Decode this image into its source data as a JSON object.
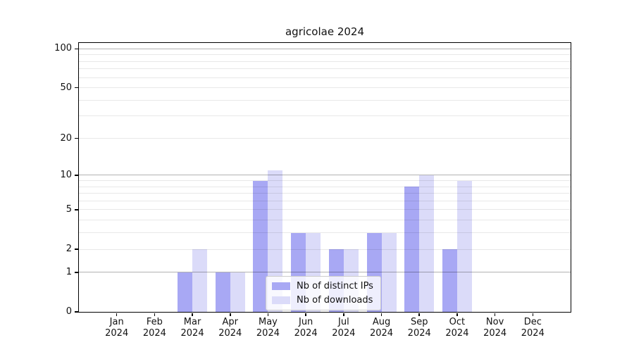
{
  "chart_data": {
    "type": "bar",
    "title": "agricolae 2024",
    "categories": [
      "Jan 2024",
      "Feb 2024",
      "Mar 2024",
      "Apr 2024",
      "May 2024",
      "Jun 2024",
      "Jul 2024",
      "Aug 2024",
      "Sep 2024",
      "Oct 2024",
      "Nov 2024",
      "Dec 2024"
    ],
    "series": [
      {
        "name": "Nb of distinct IPs",
        "color": "#a8a8f4",
        "values": [
          0,
          0,
          1,
          1,
          9,
          3,
          2,
          3,
          8,
          2,
          0,
          0
        ]
      },
      {
        "name": "Nb of downloads",
        "color": "#dbdbf9",
        "values": [
          0,
          0,
          2,
          1,
          11,
          3,
          2,
          3,
          10,
          9,
          0,
          0
        ]
      }
    ],
    "xlabel": "",
    "ylabel": "",
    "y_axis": {
      "scale": "log1p",
      "ymin": 0,
      "ymax": 111,
      "tick_values": [
        0,
        1,
        2,
        5,
        10,
        20,
        50,
        100
      ],
      "tick_labels": [
        "0",
        "1",
        "2",
        "5",
        "10",
        "20",
        "50",
        "100"
      ],
      "minor_gridlines": [
        2,
        3,
        4,
        5,
        6,
        7,
        8,
        9,
        20,
        30,
        40,
        50,
        60,
        70,
        80,
        90
      ],
      "major_gridlines": [
        1,
        10,
        100
      ]
    },
    "grid": true,
    "legend_position": "lower center inside"
  },
  "colors": {
    "background": "#ffffff",
    "spine": "#000000",
    "major_grid": "#b0b0b0",
    "minor_grid": "#e8e8e8",
    "bar_distinct_ips": "#a8a8f4",
    "bar_downloads": "#dbdbf9"
  }
}
